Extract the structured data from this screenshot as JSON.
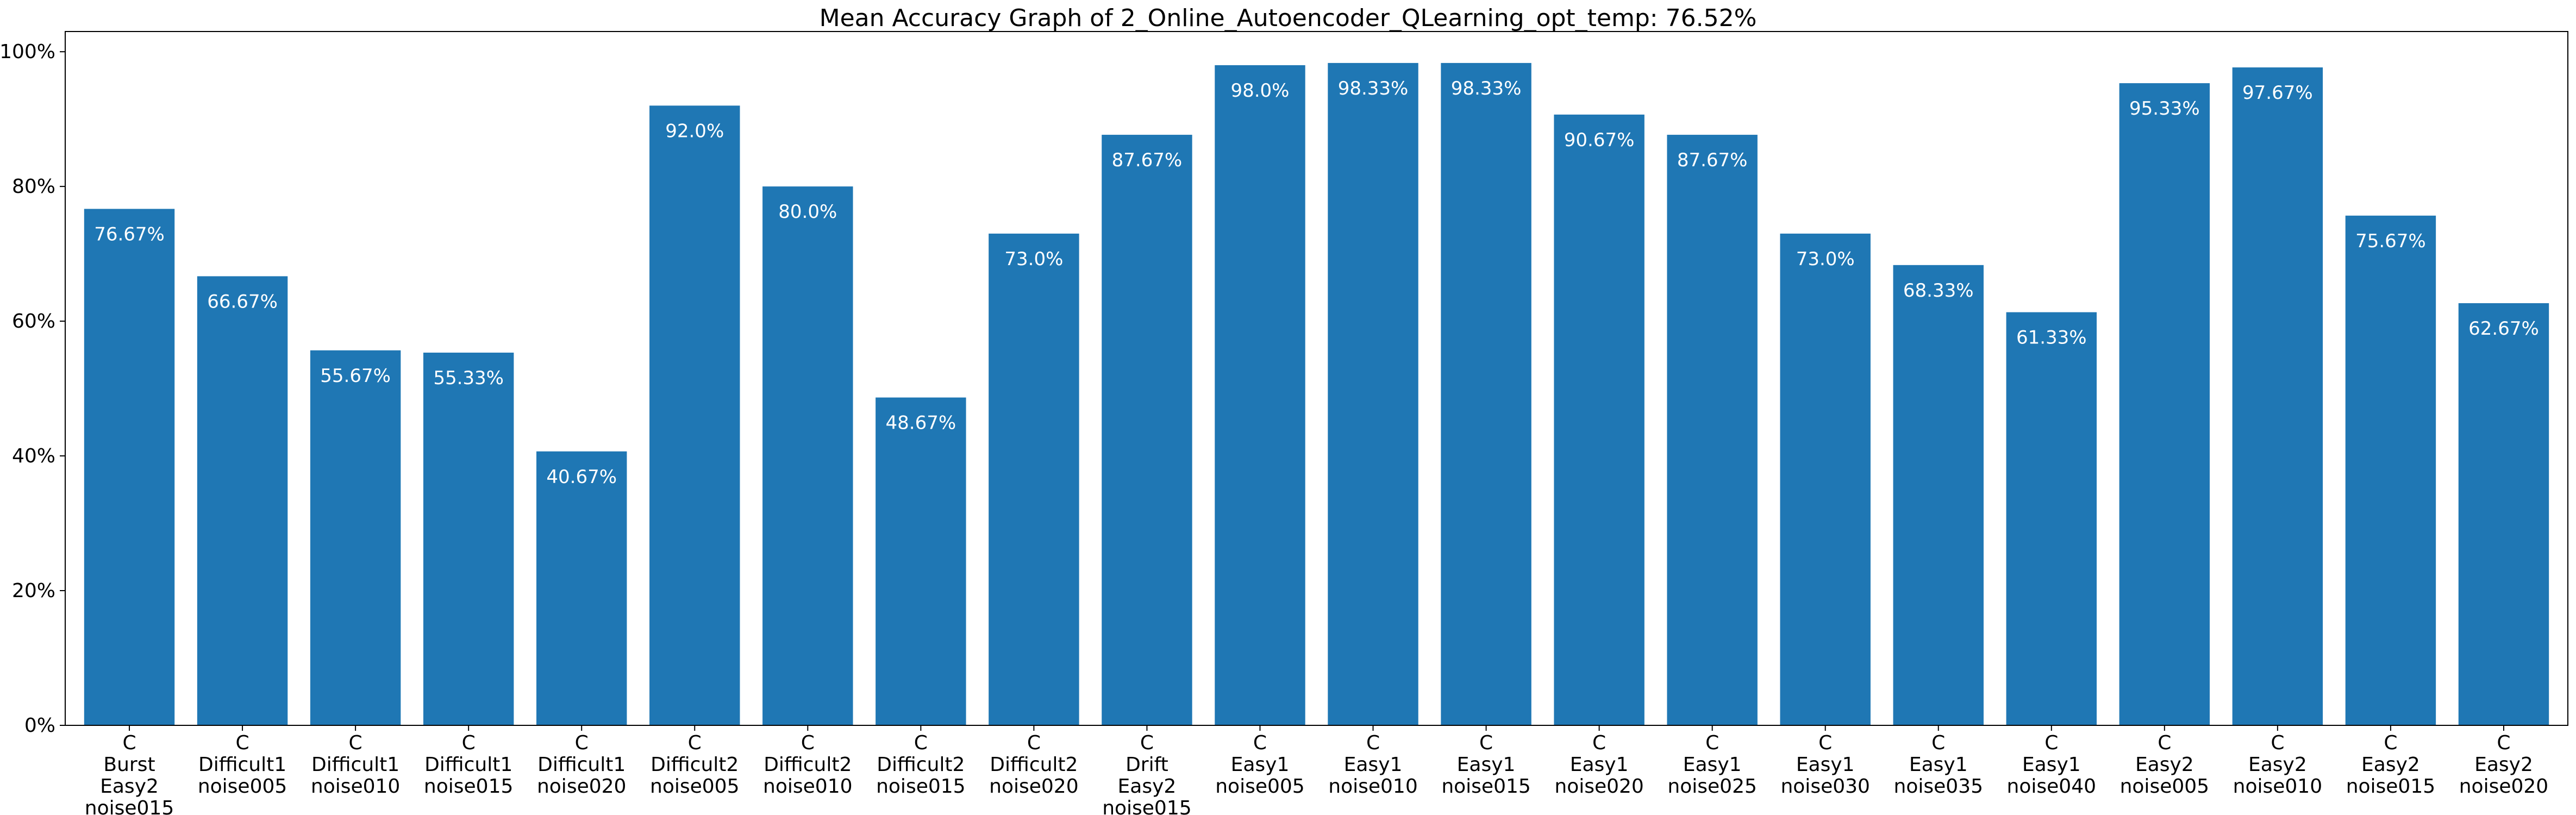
{
  "chart_data": {
    "type": "bar",
    "title": "Mean Accuracy Graph of 2_Online_Autoencoder_QLearning_opt_temp: 76.52%",
    "xlabel": "",
    "ylabel": "",
    "ylim": [
      0,
      103
    ],
    "yticks": [
      0,
      20,
      40,
      60,
      80,
      100
    ],
    "ytick_labels": [
      "0%",
      "20%",
      "40%",
      "60%",
      "80%",
      "100%"
    ],
    "bar_color": "#1f77b4",
    "grid": false,
    "categories": [
      [
        "C",
        "Burst",
        "Easy2",
        "noise015"
      ],
      [
        "C",
        "Difficult1",
        "noise005"
      ],
      [
        "C",
        "Difficult1",
        "noise010"
      ],
      [
        "C",
        "Difficult1",
        "noise015"
      ],
      [
        "C",
        "Difficult1",
        "noise020"
      ],
      [
        "C",
        "Difficult2",
        "noise005"
      ],
      [
        "C",
        "Difficult2",
        "noise010"
      ],
      [
        "C",
        "Difficult2",
        "noise015"
      ],
      [
        "C",
        "Difficult2",
        "noise020"
      ],
      [
        "C",
        "Drift",
        "Easy2",
        "noise015"
      ],
      [
        "C",
        "Easy1",
        "noise005"
      ],
      [
        "C",
        "Easy1",
        "noise010"
      ],
      [
        "C",
        "Easy1",
        "noise015"
      ],
      [
        "C",
        "Easy1",
        "noise020"
      ],
      [
        "C",
        "Easy1",
        "noise025"
      ],
      [
        "C",
        "Easy1",
        "noise030"
      ],
      [
        "C",
        "Easy1",
        "noise035"
      ],
      [
        "C",
        "Easy1",
        "noise040"
      ],
      [
        "C",
        "Easy2",
        "noise005"
      ],
      [
        "C",
        "Easy2",
        "noise010"
      ],
      [
        "C",
        "Easy2",
        "noise015"
      ],
      [
        "C",
        "Easy2",
        "noise020"
      ]
    ],
    "values": [
      76.67,
      66.67,
      55.67,
      55.33,
      40.67,
      92.0,
      80.0,
      48.67,
      73.0,
      87.67,
      98.0,
      98.33,
      98.33,
      90.67,
      87.67,
      73.0,
      68.33,
      61.33,
      95.33,
      97.67,
      75.67,
      62.67
    ],
    "value_labels": [
      "76.67%",
      "66.67%",
      "55.67%",
      "55.33%",
      "40.67%",
      "92.0%",
      "80.0%",
      "48.67%",
      "73.0%",
      "87.67%",
      "98.0%",
      "98.33%",
      "98.33%",
      "90.67%",
      "87.67%",
      "73.0%",
      "68.33%",
      "61.33%",
      "95.33%",
      "97.67%",
      "75.67%",
      "62.67%"
    ]
  }
}
